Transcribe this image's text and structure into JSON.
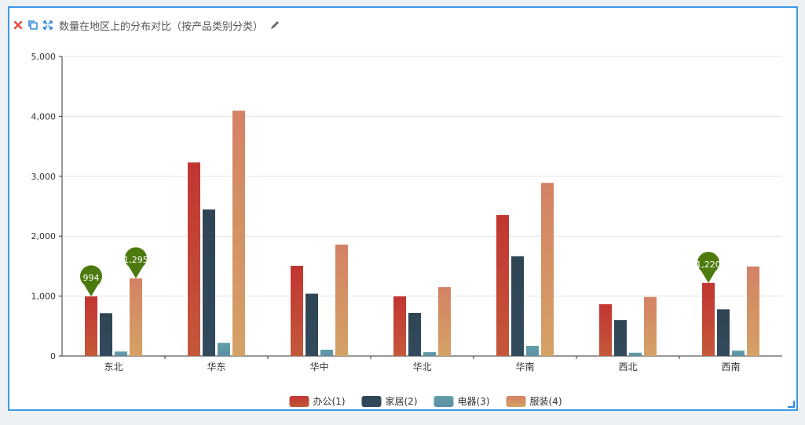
{
  "panel": {
    "title": "数量在地区上的分布对比（按产品类别分类）",
    "icons": [
      "close-icon",
      "copy-icon",
      "expand-icon",
      "edit-icon"
    ],
    "border_color": "#3c97e8"
  },
  "chart_data": {
    "type": "bar",
    "title": "",
    "xlabel": "",
    "ylabel": "",
    "categories": [
      "东北",
      "华东",
      "华中",
      "华北",
      "华南",
      "西北",
      "西南"
    ],
    "yticks": [
      "0",
      "1,000",
      "2,000",
      "3,000",
      "4,000",
      "5,000"
    ],
    "ylim": [
      0,
      5000
    ],
    "grid": true,
    "legend_position": "bottom-center",
    "series": [
      {
        "name": "办公(1)",
        "color_top": "#c23531",
        "color_bottom": "#c4583a",
        "values": [
          994,
          3230,
          1505,
          995,
          2355,
          865,
          1220
        ]
      },
      {
        "name": "家居(2)",
        "color_top": "#2f4554",
        "color_bottom": "#334a5e",
        "values": [
          715,
          2445,
          1040,
          720,
          1665,
          600,
          780
        ]
      },
      {
        "name": "电器(3)",
        "color_top": "#61a0a8",
        "color_bottom": "#5e8fa6",
        "values": [
          75,
          220,
          105,
          65,
          170,
          55,
          90
        ]
      },
      {
        "name": "服装(4)",
        "color_top": "#d48265",
        "color_bottom": "#d4a265",
        "values": [
          1295,
          4095,
          1860,
          1150,
          2890,
          985,
          1495
        ]
      }
    ],
    "markers": [
      {
        "category": "东北",
        "series": 0,
        "label": "994",
        "value": 994
      },
      {
        "category": "东北",
        "series": 3,
        "label": "1,295",
        "value": 1295
      },
      {
        "category": "西南",
        "series": 0,
        "label": "1,220",
        "value": 1220
      }
    ],
    "marker_color": "#4d7a0e"
  }
}
